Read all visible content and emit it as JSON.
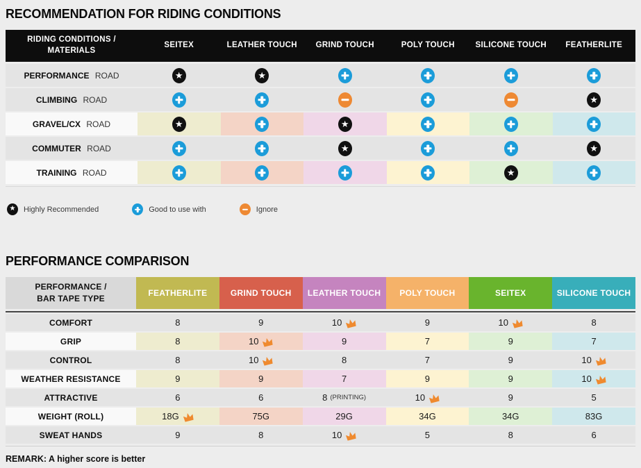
{
  "section1": {
    "title": "RECOMMENDATION FOR RIDING CONDITIONS",
    "table": {
      "header_bg": "#0d0d0d",
      "header": [
        "RIDING CONDITIONS /\nMATERIALS",
        "SEITEX",
        "LEATHER TOUCH",
        "GRIND TOUCH",
        "POLY TOUCH",
        "SILICONE TOUCH",
        "FEATHERLITE"
      ],
      "rows": [
        {
          "label_bold": "PERFORMANCE",
          "label_rest": "ROAD",
          "tinted": false,
          "icons": [
            "star",
            "star",
            "plus",
            "plus",
            "plus",
            "plus"
          ]
        },
        {
          "label_bold": "CLIMBING",
          "label_rest": "ROAD",
          "tinted": false,
          "icons": [
            "plus",
            "plus",
            "minus",
            "plus",
            "minus",
            "star"
          ]
        },
        {
          "label_bold": "GRAVEL/CX",
          "label_rest": "ROAD",
          "tinted": true,
          "icons": [
            "star",
            "plus",
            "star",
            "plus",
            "plus",
            "plus"
          ]
        },
        {
          "label_bold": "COMMUTER",
          "label_rest": "ROAD",
          "tinted": false,
          "icons": [
            "plus",
            "plus",
            "star",
            "plus",
            "plus",
            "star"
          ]
        },
        {
          "label_bold": "TRAINING",
          "label_rest": "ROAD",
          "tinted": true,
          "icons": [
            "plus",
            "plus",
            "plus",
            "plus",
            "star",
            "plus"
          ]
        }
      ]
    },
    "legend": [
      {
        "icon": "star",
        "label": "Highly Recommended"
      },
      {
        "icon": "plus",
        "label": "Good to use with"
      },
      {
        "icon": "minus",
        "label": "Ignore"
      }
    ]
  },
  "section2": {
    "title": "PERFORMANCE COMPARISON",
    "table": {
      "corner_header": "PERFORMANCE /\nBAR TAPE TYPE",
      "columns": [
        {
          "label": "FEATHERLITE",
          "color": "#c1b952"
        },
        {
          "label": "GRIND TOUCH",
          "color": "#d7604c"
        },
        {
          "label": "LEATHER TOUCH",
          "color": "#c584bf"
        },
        {
          "label": "POLY TOUCH",
          "color": "#f5b269"
        },
        {
          "label": "SEITEX",
          "color": "#69b42d"
        },
        {
          "label": "SILICONE TOUCH",
          "color": "#38aeba"
        }
      ],
      "rows": [
        {
          "label": "COMFORT",
          "tinted": false,
          "cells": [
            {
              "v": "8"
            },
            {
              "v": "9"
            },
            {
              "v": "10",
              "crown": true
            },
            {
              "v": "9"
            },
            {
              "v": "10",
              "crown": true
            },
            {
              "v": "8"
            }
          ]
        },
        {
          "label": "GRIP",
          "tinted": true,
          "cells": [
            {
              "v": "8"
            },
            {
              "v": "10",
              "crown": true
            },
            {
              "v": "9"
            },
            {
              "v": "7"
            },
            {
              "v": "9"
            },
            {
              "v": "7"
            }
          ]
        },
        {
          "label": "CONTROL",
          "tinted": false,
          "cells": [
            {
              "v": "8"
            },
            {
              "v": "10",
              "crown": true
            },
            {
              "v": "8"
            },
            {
              "v": "7"
            },
            {
              "v": "9"
            },
            {
              "v": "10",
              "crown": true
            }
          ]
        },
        {
          "label": "WEATHER RESISTANCE",
          "tinted": true,
          "cells": [
            {
              "v": "9"
            },
            {
              "v": "9"
            },
            {
              "v": "7"
            },
            {
              "v": "9"
            },
            {
              "v": "9"
            },
            {
              "v": "10",
              "crown": true
            }
          ]
        },
        {
          "label": "ATTRACTIVE",
          "tinted": false,
          "cells": [
            {
              "v": "6"
            },
            {
              "v": "6"
            },
            {
              "v": "8",
              "note": "(PRINTING)"
            },
            {
              "v": "10",
              "crown": true
            },
            {
              "v": "9"
            },
            {
              "v": "5"
            }
          ]
        },
        {
          "label": "WEIGHT (ROLL)",
          "tinted": true,
          "cells": [
            {
              "v": "18G",
              "crown": true
            },
            {
              "v": "75G"
            },
            {
              "v": "29G"
            },
            {
              "v": "34G"
            },
            {
              "v": "34G"
            },
            {
              "v": "83G"
            }
          ]
        },
        {
          "label": "SWEAT HANDS",
          "tinted": false,
          "cells": [
            {
              "v": "9"
            },
            {
              "v": "8"
            },
            {
              "v": "10",
              "crown": true
            },
            {
              "v": "5"
            },
            {
              "v": "8"
            },
            {
              "v": "6"
            }
          ]
        }
      ]
    },
    "remark": "REMARK: A higher score is better"
  },
  "palette": {
    "plus": "#1b9cd9",
    "minus": "#ee8933",
    "star": "#111111",
    "crown": "#ef8a2f",
    "row_gray": "#e4e4e4",
    "row_white": "#f9f9f9",
    "corner_bg": "#d9d9d9",
    "tints": [
      "#eeeccf",
      "#f4d4c6",
      "#f0d7e8",
      "#fdf3d1",
      "#def0d5",
      "#cfe8ec"
    ]
  },
  "chart_data": [
    {
      "type": "table",
      "title": "RECOMMENDATION FOR RIDING CONDITIONS",
      "columns": [
        "SEITEX",
        "LEATHER TOUCH",
        "GRIND TOUCH",
        "POLY TOUCH",
        "SILICONE TOUCH",
        "FEATHERLITE"
      ],
      "rows": [
        "PERFORMANCE ROAD",
        "CLIMBING ROAD",
        "GRAVEL/CX ROAD",
        "COMMUTER ROAD",
        "TRAINING ROAD"
      ],
      "values": [
        [
          "highly_recommended",
          "highly_recommended",
          "good_to_use",
          "good_to_use",
          "good_to_use",
          "good_to_use"
        ],
        [
          "good_to_use",
          "good_to_use",
          "ignore",
          "good_to_use",
          "ignore",
          "highly_recommended"
        ],
        [
          "highly_recommended",
          "good_to_use",
          "highly_recommended",
          "good_to_use",
          "good_to_use",
          "good_to_use"
        ],
        [
          "good_to_use",
          "good_to_use",
          "highly_recommended",
          "good_to_use",
          "good_to_use",
          "highly_recommended"
        ],
        [
          "good_to_use",
          "good_to_use",
          "good_to_use",
          "good_to_use",
          "highly_recommended",
          "good_to_use"
        ]
      ],
      "legend": [
        "Highly Recommended",
        "Good to use with",
        "Ignore"
      ]
    },
    {
      "type": "table",
      "title": "PERFORMANCE COMPARISON",
      "columns": [
        "FEATHERLITE",
        "GRIND TOUCH",
        "LEATHER TOUCH",
        "POLY TOUCH",
        "SEITEX",
        "SILICONE TOUCH"
      ],
      "rows": [
        "COMFORT",
        "GRIP",
        "CONTROL",
        "WEATHER RESISTANCE",
        "ATTRACTIVE",
        "WEIGHT (ROLL)",
        "SWEAT HANDS"
      ],
      "values": [
        [
          8,
          9,
          10,
          9,
          10,
          8
        ],
        [
          8,
          10,
          9,
          7,
          9,
          7
        ],
        [
          8,
          10,
          8,
          7,
          9,
          10
        ],
        [
          9,
          9,
          7,
          9,
          9,
          10
        ],
        [
          6,
          6,
          8,
          10,
          9,
          5
        ],
        [
          "18G",
          "75G",
          "29G",
          "34G",
          "34G",
          "83G"
        ],
        [
          9,
          8,
          10,
          5,
          8,
          6
        ]
      ],
      "crown_marked_columns_per_row": [
        [
          "LEATHER TOUCH",
          "SEITEX"
        ],
        [
          "GRIND TOUCH"
        ],
        [
          "GRIND TOUCH",
          "SILICONE TOUCH"
        ],
        [
          "SILICONE TOUCH"
        ],
        [
          "POLY TOUCH"
        ],
        [
          "FEATHERLITE"
        ],
        [
          "LEATHER TOUCH"
        ]
      ],
      "note": "REMARK: A higher score is better"
    }
  ]
}
